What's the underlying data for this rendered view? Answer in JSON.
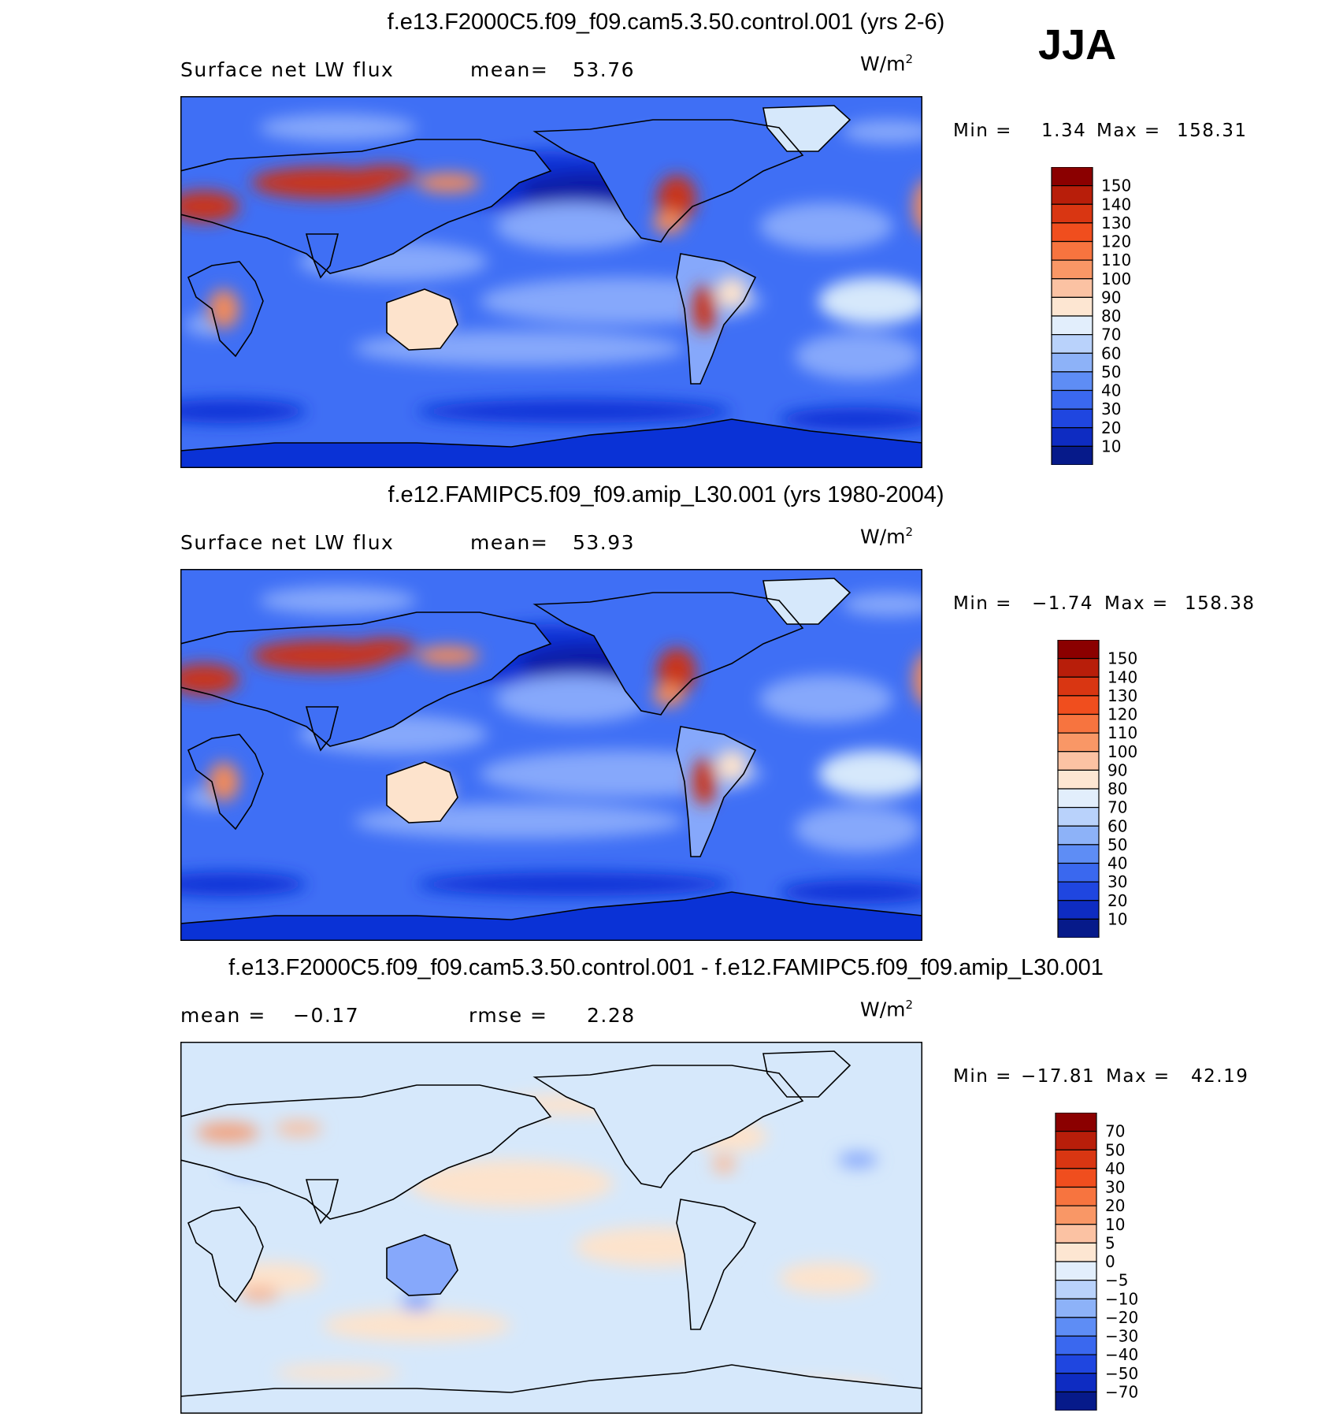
{
  "season": "JJA",
  "unit": {
    "base": "W/m",
    "exp": "2"
  },
  "colors": {
    "ocean_low": "#0a32d6",
    "ocean_mid": "#3f6ff5",
    "ocean_light": "#86a8fb",
    "pale_blue": "#d6e8fb",
    "pale_orange": "#fde3cc",
    "warm": "#f08a5c",
    "hot": "#c8361e",
    "coast": "#000000"
  },
  "chart_data": [
    {
      "type": "heatmap",
      "title": "f.e13.F2000C5.f09_f09.cam5.3.50.control.001 (yrs 2-6)",
      "variable": "Surface net LW flux",
      "stat_left": {
        "label": "mean=",
        "value": "53.76"
      },
      "stat_right": null,
      "range_text": {
        "min_label": "Min =",
        "min": "1.34",
        "max_label": "Max =",
        "max": "158.31"
      },
      "colorbar": {
        "levels": [
          "150",
          "140",
          "130",
          "120",
          "110",
          "100",
          "90",
          "80",
          "70",
          "60",
          "50",
          "40",
          "30",
          "20",
          "10"
        ],
        "colors": [
          "#8b0000",
          "#b81e0a",
          "#d93612",
          "#f04e1e",
          "#f7743f",
          "#f99766",
          "#fbc2a3",
          "#fde6d2",
          "#e2eefc",
          "#b9d2fb",
          "#8db2f8",
          "#5e8df5",
          "#3a68ef",
          "#1f46e0",
          "#0e2cc2",
          "#061a8a"
        ]
      }
    },
    {
      "type": "heatmap",
      "title": "f.e12.FAMIPC5.f09_f09.amip_L30.001 (yrs 1980-2004)",
      "variable": "Surface net LW flux",
      "stat_left": {
        "label": "mean=",
        "value": "53.93"
      },
      "stat_right": null,
      "range_text": {
        "min_label": "Min =",
        "min": "−1.74",
        "max_label": "Max =",
        "max": "158.38"
      },
      "colorbar": {
        "levels": [
          "150",
          "140",
          "130",
          "120",
          "110",
          "100",
          "90",
          "80",
          "70",
          "60",
          "50",
          "40",
          "30",
          "20",
          "10"
        ],
        "colors": [
          "#8b0000",
          "#b81e0a",
          "#d93612",
          "#f04e1e",
          "#f7743f",
          "#f99766",
          "#fbc2a3",
          "#fde6d2",
          "#e2eefc",
          "#b9d2fb",
          "#8db2f8",
          "#5e8df5",
          "#3a68ef",
          "#1f46e0",
          "#0e2cc2",
          "#061a8a"
        ]
      }
    },
    {
      "type": "heatmap",
      "title": "f.e13.F2000C5.f09_f09.cam5.3.50.control.001 - f.e12.FAMIPC5.f09_f09.amip_L30.001",
      "variable": "",
      "stat_left": {
        "label": "mean =",
        "value": "−0.17"
      },
      "stat_right": {
        "label": "rmse =",
        "value": "2.28"
      },
      "range_text": {
        "min_label": "Min =",
        "min": "−17.81",
        "max_label": "Max =",
        "max": "42.19"
      },
      "colorbar": {
        "levels": [
          "70",
          "50",
          "40",
          "30",
          "20",
          "10",
          "5",
          "0",
          "−5",
          "−10",
          "−20",
          "−30",
          "−40",
          "−50",
          "−70"
        ],
        "colors": [
          "#8b0000",
          "#b81e0a",
          "#d93612",
          "#f04e1e",
          "#f7743f",
          "#f99766",
          "#fbc2a3",
          "#fde6d2",
          "#e2eefc",
          "#b9d2fb",
          "#8db2f8",
          "#5e8df5",
          "#3a68ef",
          "#1f46e0",
          "#0e2cc2",
          "#061a8a"
        ]
      }
    }
  ]
}
